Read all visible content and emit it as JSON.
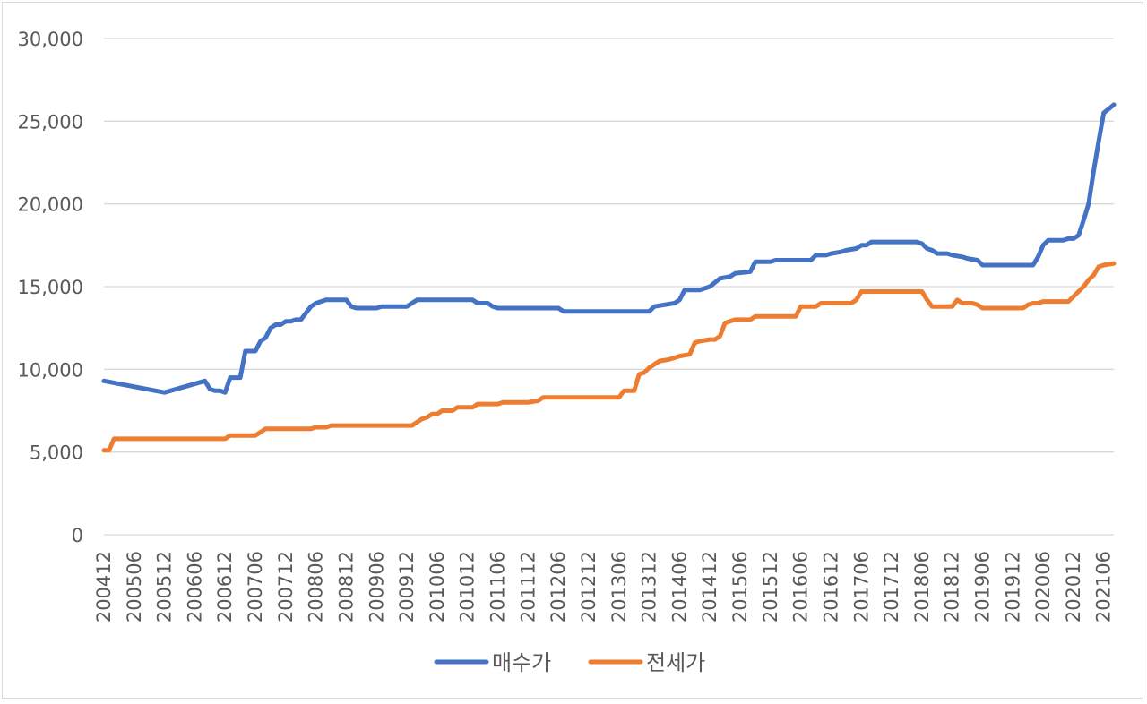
{
  "chart_data": {
    "type": "line",
    "title": "",
    "xlabel": "",
    "ylabel": "",
    "ylim": [
      0,
      30000
    ],
    "y_ticks": [
      0,
      5000,
      10000,
      15000,
      20000,
      25000,
      30000
    ],
    "y_tick_labels": [
      "0",
      "5,000",
      "10,000",
      "15,000",
      "20,000",
      "25,000",
      "30,000"
    ],
    "x_start": "200412",
    "x_end": "202108",
    "x_tick_labels": [
      "200412",
      "200506",
      "200512",
      "200606",
      "200612",
      "200706",
      "200712",
      "200806",
      "200812",
      "200906",
      "200912",
      "201006",
      "201012",
      "201106",
      "201112",
      "201206",
      "201212",
      "201306",
      "201312",
      "201406",
      "201412",
      "201506",
      "201512",
      "201606",
      "201612",
      "201706",
      "201712",
      "201806",
      "201812",
      "201906",
      "201912",
      "202006",
      "202012",
      "202106"
    ],
    "grid": true,
    "legend": "bottom",
    "series": [
      {
        "name": "매수가",
        "color": "#4472c4",
        "points": [
          [
            "200412",
            9300
          ],
          [
            "200608",
            9300
          ],
          [
            "200609",
            8800
          ],
          [
            "200610",
            8700
          ],
          [
            "200611",
            8700
          ],
          [
            "200512",
            8600
          ],
          [
            "200612",
            8600
          ],
          [
            "200701",
            9500
          ],
          [
            "200703",
            9500
          ],
          [
            "200704",
            11100
          ],
          [
            "200706",
            11100
          ],
          [
            "200707",
            11700
          ],
          [
            "200708",
            11900
          ],
          [
            "200709",
            12500
          ],
          [
            "200710",
            12700
          ],
          [
            "200711",
            12700
          ],
          [
            "200712",
            12900
          ],
          [
            "200801",
            12900
          ],
          [
            "200802",
            13000
          ],
          [
            "200803",
            13000
          ],
          [
            "200804",
            13400
          ],
          [
            "200805",
            13800
          ],
          [
            "200806",
            14000
          ],
          [
            "200808",
            14200
          ],
          [
            "200812",
            14200
          ],
          [
            "200901",
            13800
          ],
          [
            "200902",
            13700
          ],
          [
            "200906",
            13700
          ],
          [
            "200907",
            13800
          ],
          [
            "200911",
            13800
          ],
          [
            "200912",
            13800
          ],
          [
            "201001",
            14000
          ],
          [
            "201002",
            14200
          ],
          [
            "201012",
            14200
          ],
          [
            "201101",
            14200
          ],
          [
            "201102",
            14000
          ],
          [
            "201104",
            14000
          ],
          [
            "201105",
            13800
          ],
          [
            "201106",
            13700
          ],
          [
            "201206",
            13700
          ],
          [
            "201207",
            13500
          ],
          [
            "201312",
            13500
          ],
          [
            "201401",
            13800
          ],
          [
            "201403",
            13900
          ],
          [
            "201405",
            14000
          ],
          [
            "201406",
            14200
          ],
          [
            "201407",
            14800
          ],
          [
            "201410",
            14800
          ],
          [
            "201412",
            15000
          ],
          [
            "201502",
            15500
          ],
          [
            "201504",
            15600
          ],
          [
            "201505",
            15800
          ],
          [
            "201508",
            15900
          ],
          [
            "201509",
            16500
          ],
          [
            "201512",
            16500
          ],
          [
            "201601",
            16600
          ],
          [
            "201608",
            16600
          ],
          [
            "201609",
            16900
          ],
          [
            "201611",
            16900
          ],
          [
            "201612",
            17000
          ],
          [
            "201702",
            17100
          ],
          [
            "201703",
            17200
          ],
          [
            "201705",
            17300
          ],
          [
            "201706",
            17500
          ],
          [
            "201707",
            17500
          ],
          [
            "201708",
            17700
          ],
          [
            "201805",
            17700
          ],
          [
            "201806",
            17600
          ],
          [
            "201807",
            17300
          ],
          [
            "201808",
            17200
          ],
          [
            "201809",
            17000
          ],
          [
            "201811",
            17000
          ],
          [
            "201812",
            16900
          ],
          [
            "201902",
            16800
          ],
          [
            "201903",
            16700
          ],
          [
            "201905",
            16600
          ],
          [
            "201906",
            16300
          ],
          [
            "202001",
            16300
          ],
          [
            "202002",
            16300
          ],
          [
            "202004",
            16300
          ],
          [
            "202005",
            16800
          ],
          [
            "202006",
            17500
          ],
          [
            "202007",
            17800
          ],
          [
            "202010",
            17800
          ],
          [
            "202011",
            17900
          ],
          [
            "202012",
            17900
          ],
          [
            "202101",
            18100
          ],
          [
            "202102",
            19000
          ],
          [
            "202103",
            20000
          ],
          [
            "202104",
            22000
          ],
          [
            "202105",
            23800
          ],
          [
            "202106",
            25500
          ],
          [
            "202108",
            26000
          ]
        ]
      },
      {
        "name": "전세가",
        "color": "#ed7d31",
        "points": [
          [
            "200412",
            5100
          ],
          [
            "200501",
            5100
          ],
          [
            "200502",
            5800
          ],
          [
            "200611",
            5800
          ],
          [
            "200612",
            5800
          ],
          [
            "200701",
            6000
          ],
          [
            "200706",
            6000
          ],
          [
            "200707",
            6200
          ],
          [
            "200708",
            6400
          ],
          [
            "200712",
            6400
          ],
          [
            "200805",
            6400
          ],
          [
            "200806",
            6500
          ],
          [
            "200808",
            6500
          ],
          [
            "200809",
            6600
          ],
          [
            "200912",
            6600
          ],
          [
            "201001",
            6600
          ],
          [
            "201002",
            6800
          ],
          [
            "201003",
            7000
          ],
          [
            "201004",
            7100
          ],
          [
            "201005",
            7300
          ],
          [
            "201006",
            7300
          ],
          [
            "201007",
            7500
          ],
          [
            "201009",
            7500
          ],
          [
            "201010",
            7700
          ],
          [
            "201101",
            7700
          ],
          [
            "201102",
            7900
          ],
          [
            "201106",
            7900
          ],
          [
            "201107",
            8000
          ],
          [
            "201112",
            8000
          ],
          [
            "201202",
            8100
          ],
          [
            "201203",
            8300
          ],
          [
            "201305",
            8300
          ],
          [
            "201306",
            8300
          ],
          [
            "201307",
            8700
          ],
          [
            "201309",
            8700
          ],
          [
            "201310",
            9700
          ],
          [
            "201311",
            9800
          ],
          [
            "201312",
            10100
          ],
          [
            "201402",
            10500
          ],
          [
            "201404",
            10600
          ],
          [
            "201406",
            10800
          ],
          [
            "201408",
            10900
          ],
          [
            "201409",
            11600
          ],
          [
            "201410",
            11700
          ],
          [
            "201412",
            11800
          ],
          [
            "201501",
            11800
          ],
          [
            "201502",
            12000
          ],
          [
            "201503",
            12800
          ],
          [
            "201504",
            12900
          ],
          [
            "201505",
            13000
          ],
          [
            "201508",
            13000
          ],
          [
            "201509",
            13200
          ],
          [
            "201512",
            13200
          ],
          [
            "201605",
            13200
          ],
          [
            "201606",
            13800
          ],
          [
            "201609",
            13800
          ],
          [
            "201610",
            14000
          ],
          [
            "201612",
            14000
          ],
          [
            "201702",
            14000
          ],
          [
            "201704",
            14000
          ],
          [
            "201705",
            14200
          ],
          [
            "201706",
            14700
          ],
          [
            "201806",
            14700
          ],
          [
            "201807",
            14200
          ],
          [
            "201808",
            13800
          ],
          [
            "201812",
            13800
          ],
          [
            "201901",
            14200
          ],
          [
            "201902",
            14000
          ],
          [
            "201904",
            14000
          ],
          [
            "201905",
            13900
          ],
          [
            "201906",
            13700
          ],
          [
            "202001",
            13700
          ],
          [
            "202002",
            13700
          ],
          [
            "202003",
            13900
          ],
          [
            "202004",
            14000
          ],
          [
            "202005",
            14000
          ],
          [
            "202006",
            14100
          ],
          [
            "202011",
            14100
          ],
          [
            "202012",
            14400
          ],
          [
            "202101",
            14700
          ],
          [
            "202102",
            15000
          ],
          [
            "202103",
            15400
          ],
          [
            "202104",
            15700
          ],
          [
            "202105",
            16200
          ],
          [
            "202106",
            16300
          ],
          [
            "202108",
            16400
          ]
        ]
      }
    ]
  }
}
